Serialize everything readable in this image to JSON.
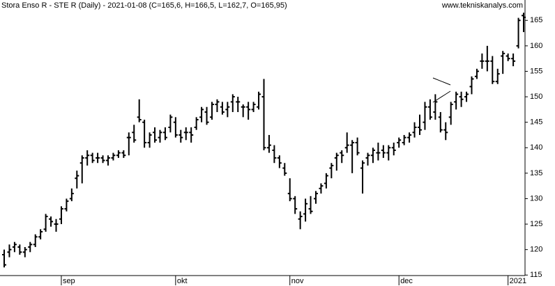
{
  "chart_data": {
    "type": "ohlc",
    "title": "Stora Enso R - STE R (Daily) - 2021-01-08 (C=165,6, H=166,5, L=162,7, O=165,95)",
    "subtitle": "www.tekniskanalys.com",
    "color": "#000000",
    "categories": [
      null,
      null,
      null,
      null,
      null,
      null,
      null,
      null,
      null,
      null,
      null,
      "sep",
      null,
      null,
      null,
      null,
      null,
      null,
      null,
      null,
      null,
      null,
      null,
      null,
      null,
      null,
      null,
      null,
      null,
      null,
      null,
      null,
      null,
      "okt",
      null,
      null,
      null,
      null,
      null,
      null,
      null,
      null,
      null,
      null,
      null,
      null,
      null,
      null,
      null,
      null,
      null,
      null,
      null,
      null,
      null,
      "nov",
      null,
      null,
      null,
      null,
      null,
      null,
      null,
      null,
      null,
      null,
      null,
      null,
      null,
      null,
      null,
      null,
      null,
      null,
      null,
      null,
      "dec",
      null,
      null,
      null,
      null,
      null,
      null,
      null,
      null,
      null,
      null,
      null,
      null,
      null,
      null,
      null,
      null,
      null,
      null,
      null,
      null,
      "2021",
      null,
      null,
      null
    ],
    "open": [
      119,
      119.5,
      120.5,
      120.5,
      119.5,
      120.5,
      121,
      122.5,
      124,
      126,
      125,
      126,
      128,
      130,
      134,
      137,
      138,
      138.5,
      138,
      138,
      137.5,
      138,
      138.5,
      139,
      142,
      143,
      146,
      145,
      141,
      143,
      142,
      143,
      144,
      145,
      142.5,
      143,
      143,
      144,
      146,
      147,
      146,
      148.5,
      148,
      147.5,
      149,
      149,
      148,
      148,
      147.5,
      148,
      150,
      140,
      139.5,
      138,
      136,
      131,
      130,
      126,
      127,
      128,
      130,
      132,
      133,
      136,
      138,
      139,
      140,
      140.5,
      141,
      136,
      138,
      138.5,
      139,
      139.5,
      139,
      140,
      141,
      141,
      142,
      143,
      144,
      145,
      148,
      147,
      146,
      143.5,
      146,
      149,
      150,
      150,
      152,
      154,
      157,
      157,
      157,
      153,
      158,
      158,
      157.5,
      160,
      165.95
    ],
    "high": [
      120,
      121,
      121.5,
      121,
      120.5,
      121.5,
      123,
      124,
      127,
      126.5,
      126,
      128.5,
      130,
      132,
      135.5,
      138.5,
      139.5,
      139,
      139,
      138.5,
      138.5,
      139,
      139.5,
      139.5,
      143,
      144.5,
      149.5,
      145.5,
      143,
      144,
      143.5,
      144,
      146.5,
      146,
      143.5,
      144,
      144,
      146,
      148,
      148,
      149,
      149.5,
      149,
      149,
      150.5,
      150,
      148.5,
      149,
      149,
      151,
      153.5,
      142.5,
      140.5,
      138.5,
      137,
      134,
      130.5,
      127.5,
      130,
      130.5,
      131.5,
      133,
      135,
      137,
      139,
      139.5,
      143,
      141.5,
      142,
      137.5,
      139,
      140,
      141,
      140.5,
      140.5,
      141,
      142,
      142.5,
      143,
      145,
      146.5,
      149,
      149.5,
      150.5,
      147,
      145,
      149,
      151,
      151,
      151,
      154,
      155.5,
      158.5,
      160,
      158,
      155.5,
      159,
      158.5,
      158.5,
      165.5,
      166.5
    ],
    "low": [
      116.5,
      118.5,
      119.5,
      119,
      118.5,
      119.5,
      120.5,
      122,
      123.5,
      124.5,
      123.5,
      125,
      127.5,
      129.5,
      132,
      133,
      136.5,
      137,
      137,
      137,
      136.5,
      137.5,
      138,
      138,
      138.5,
      141,
      145,
      140,
      140,
      141,
      141,
      141.5,
      143,
      142,
      141,
      141.5,
      141,
      143.5,
      145,
      144.5,
      145.5,
      147,
      146.5,
      146,
      147,
      147,
      146,
      145.5,
      147,
      147.5,
      139.5,
      139,
      137,
      136,
      134.5,
      129.5,
      127,
      124,
      125.5,
      127,
      129,
      131,
      132,
      134,
      135.5,
      137,
      139,
      135,
      138.5,
      131,
      136.5,
      137,
      137.5,
      138,
      137.5,
      138.5,
      140,
      140.5,
      141,
      142,
      142.5,
      143.5,
      145.5,
      145.5,
      143,
      141.5,
      144.5,
      147.5,
      148,
      149,
      150.5,
      153.5,
      155.5,
      155,
      152.5,
      152.5,
      154.5,
      157,
      156,
      159.5,
      162.7
    ],
    "close": [
      117,
      120,
      121,
      119.5,
      120,
      121,
      122.5,
      123.5,
      126.5,
      125.5,
      125,
      128,
      129.5,
      131,
      134.5,
      138,
      138.5,
      137.5,
      138,
      137.5,
      138,
      138.5,
      139,
      138.5,
      142,
      141.5,
      145.5,
      141,
      142.5,
      141.5,
      143,
      142,
      146,
      142.5,
      142,
      143,
      142.5,
      145.5,
      147.5,
      145,
      148.5,
      149,
      147,
      148,
      150,
      149,
      148,
      147.5,
      148.5,
      150.5,
      140,
      140.5,
      138,
      137,
      135,
      130,
      128,
      126.5,
      129,
      127.5,
      131,
      132.5,
      134.5,
      136.5,
      138.5,
      138.5,
      140.5,
      141,
      139,
      137,
      138.5,
      139.5,
      139,
      139,
      140,
      139.5,
      141.5,
      142,
      142.5,
      144,
      143.5,
      148,
      146,
      149,
      143.5,
      143,
      148.5,
      150.5,
      149.5,
      150.5,
      153.5,
      155,
      157,
      157,
      153,
      154.5,
      158.5,
      157.5,
      157,
      165,
      165.6
    ],
    "ylim": [
      114.9,
      169
    ],
    "yticks": [
      115,
      120,
      125,
      130,
      135,
      140,
      145,
      150,
      155,
      160,
      165
    ]
  }
}
